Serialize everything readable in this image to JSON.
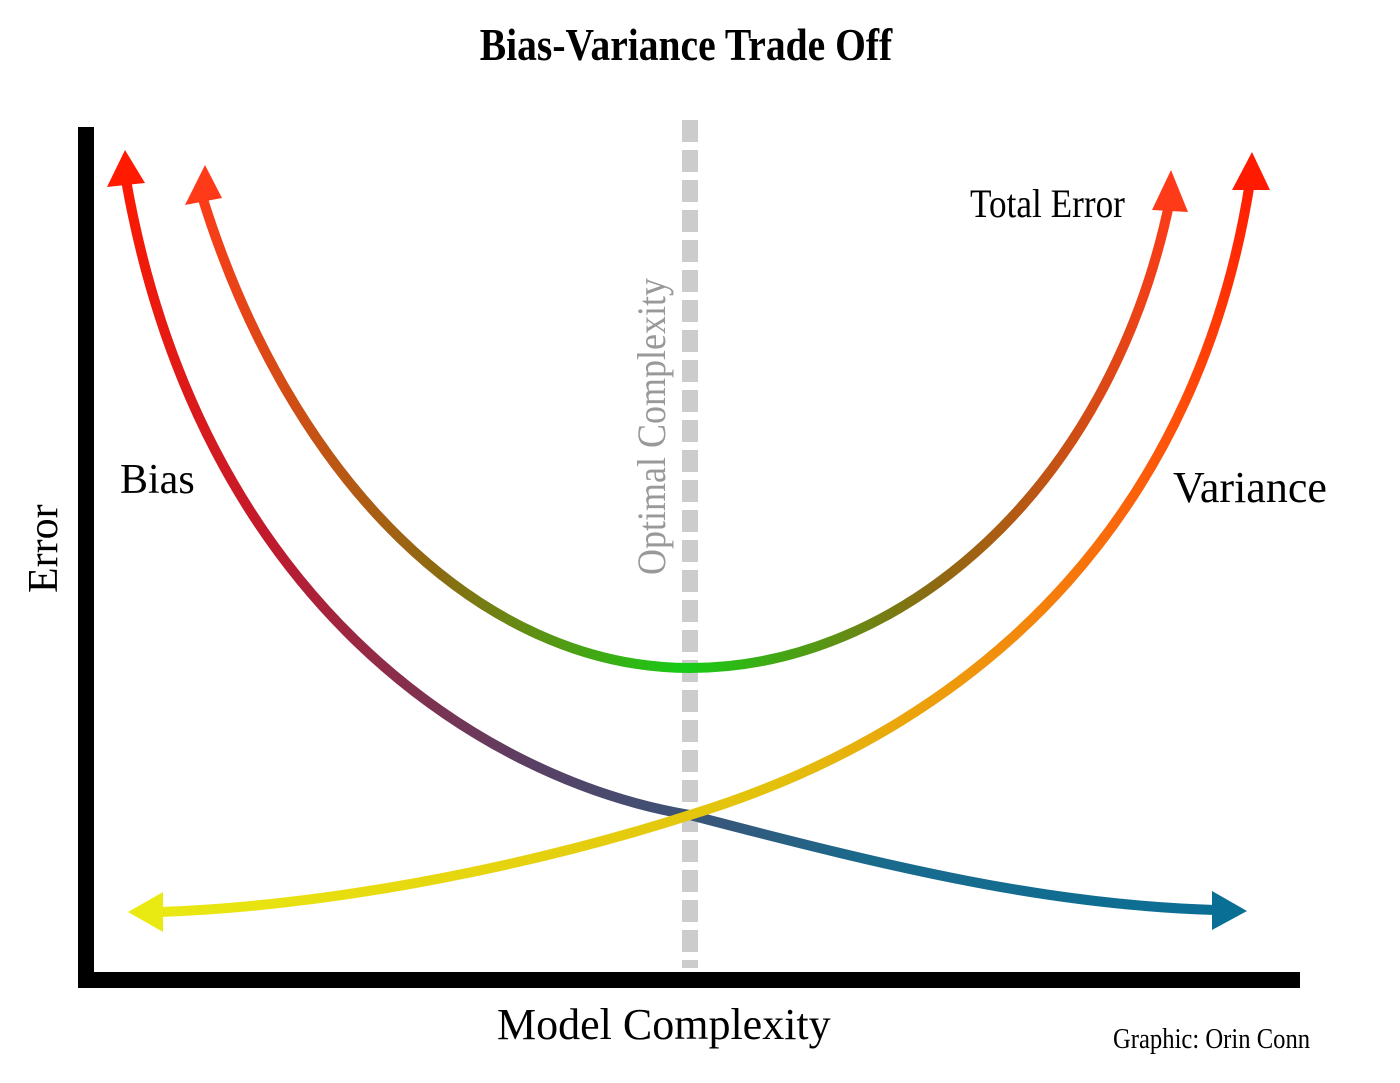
{
  "title": "Bias-Variance Trade Off",
  "axes": {
    "x_label": "Model Complexity",
    "y_label": "Error"
  },
  "curves": {
    "bias": {
      "label": "Bias",
      "colors": [
        "#ff1a00",
        "#c01a2e",
        "#5a3f63",
        "#1a6a8c",
        "#0a6f95"
      ]
    },
    "variance": {
      "label": "Variance",
      "colors": [
        "#e9ea12",
        "#e3c00c",
        "#f28b0c",
        "#ff4e0a",
        "#ff1a00"
      ]
    },
    "total_error": {
      "label": "Total Error",
      "colors": [
        "#ff3a18",
        "#8c6a12",
        "#16cc16",
        "#8c6a12",
        "#ff3a18"
      ]
    }
  },
  "optimal_line": {
    "label": "Optimal Complexity",
    "color": "#cccccc"
  },
  "credit": "Graphic: Orin Conn"
}
